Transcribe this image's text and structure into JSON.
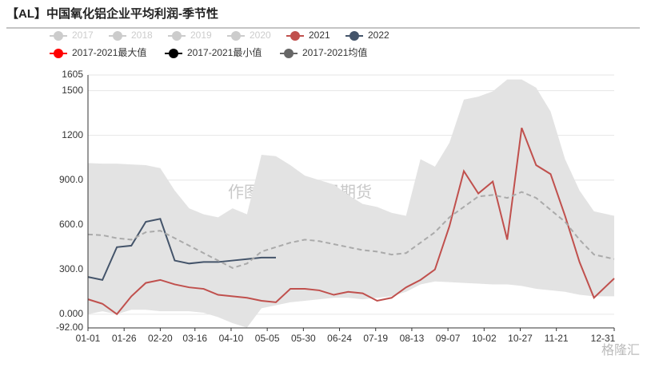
{
  "chart_data": {
    "type": "line",
    "title": "【AL】中国氧化铝企业平均利润-季节性",
    "watermark": "作图：紫金天风期货",
    "logo": "格隆汇",
    "x": [
      "01-01",
      "01-11",
      "01-21",
      "01-31",
      "02-10",
      "02-20",
      "03-02",
      "03-12",
      "03-22",
      "04-01",
      "04-11",
      "04-21",
      "05-01",
      "05-11",
      "05-21",
      "05-31",
      "06-10",
      "06-20",
      "06-30",
      "07-10",
      "07-20",
      "07-30",
      "08-09",
      "08-19",
      "08-29",
      "09-08",
      "09-18",
      "09-28",
      "10-08",
      "10-18",
      "10-28",
      "11-07",
      "11-17",
      "11-27",
      "12-07",
      "12-17",
      "12-31"
    ],
    "xticks": [
      "01-01",
      "01-26",
      "02-20",
      "03-16",
      "04-10",
      "05-05",
      "05-30",
      "06-24",
      "07-19",
      "08-13",
      "09-07",
      "10-02",
      "10-27",
      "11-21",
      "12-31"
    ],
    "ylim": [
      -92,
      1605
    ],
    "yticks": [
      {
        "value": -92,
        "label": "-92.00"
      },
      {
        "value": 0,
        "label": "0.000"
      },
      {
        "value": 300,
        "label": "300.0"
      },
      {
        "value": 600,
        "label": "600.0"
      },
      {
        "value": 900,
        "label": "900.0"
      },
      1200,
      1500,
      1605
    ],
    "grid": true,
    "series": [
      {
        "name": "2017",
        "color": "#cccccc",
        "visible": false
      },
      {
        "name": "2018",
        "color": "#cccccc",
        "visible": false
      },
      {
        "name": "2019",
        "color": "#cccccc",
        "visible": false
      },
      {
        "name": "2020",
        "color": "#cccccc",
        "visible": false
      },
      {
        "name": "2021",
        "color": "#c0504d",
        "visible": true,
        "role": "line",
        "values": [
          100,
          70,
          0,
          120,
          210,
          230,
          200,
          180,
          170,
          130,
          120,
          110,
          90,
          80,
          170,
          170,
          160,
          130,
          150,
          140,
          90,
          110,
          180,
          230,
          300,
          590,
          960,
          810,
          890,
          500,
          1250,
          1000,
          940,
          660,
          350,
          110,
          240
        ]
      },
      {
        "name": "2022",
        "color": "#44546a",
        "visible": true,
        "role": "line",
        "values": [
          250,
          230,
          450,
          460,
          620,
          640,
          360,
          340,
          350,
          350,
          360,
          370,
          380,
          380,
          null,
          null,
          null,
          null,
          null,
          null,
          null,
          null,
          null,
          null,
          null,
          null,
          null,
          null,
          null,
          null,
          null,
          null,
          null,
          null,
          null,
          null,
          null
        ]
      },
      {
        "name": "2017-2021最大值",
        "color": "#ff0000",
        "visible": true,
        "role": "band-top",
        "band_color": "#e3e3e3",
        "values": [
          1014,
          1010,
          1010,
          1005,
          1000,
          980,
          830,
          710,
          670,
          650,
          710,
          670,
          1070,
          1060,
          1000,
          930,
          900,
          870,
          800,
          740,
          720,
          680,
          660,
          1040,
          990,
          1150,
          1440,
          1460,
          1495,
          1575,
          1575,
          1520,
          1360,
          1040,
          830,
          690,
          660
        ]
      },
      {
        "name": "2017-2021最小值",
        "color": "#000000",
        "visible": true,
        "role": "band-bottom",
        "values": [
          0,
          20,
          0,
          30,
          30,
          20,
          20,
          20,
          10,
          -20,
          -60,
          -90,
          40,
          60,
          80,
          90,
          100,
          110,
          110,
          100,
          110,
          120,
          150,
          200,
          220,
          215,
          210,
          205,
          200,
          200,
          190,
          170,
          160,
          150,
          130,
          120,
          120
        ]
      },
      {
        "name": "2017-2021均值",
        "color": "#666666",
        "visible": true,
        "role": "dashed",
        "values": [
          535,
          530,
          510,
          500,
          550,
          560,
          510,
          460,
          410,
          360,
          310,
          340,
          420,
          450,
          480,
          500,
          490,
          470,
          450,
          430,
          420,
          400,
          410,
          480,
          550,
          650,
          720,
          790,
          800,
          780,
          820,
          780,
          700,
          620,
          500,
          400,
          370
        ]
      }
    ]
  }
}
